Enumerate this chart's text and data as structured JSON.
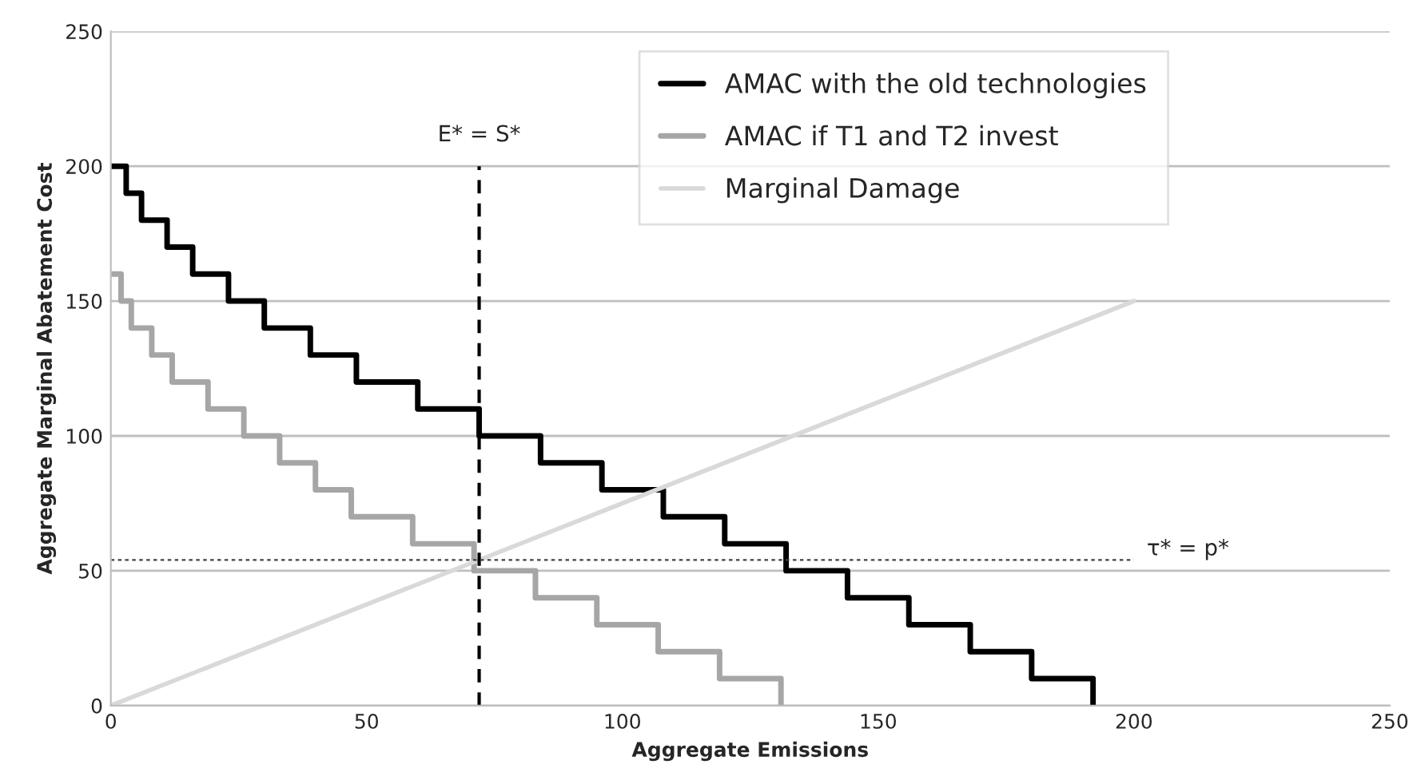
{
  "chart_data": {
    "type": "step",
    "xlabel": "Aggregate Emissions",
    "ylabel": "Aggregate Marginal Abatement Cost",
    "xlim": [
      0,
      250
    ],
    "ylim": [
      0,
      250
    ],
    "xticks": [
      0,
      50,
      100,
      150,
      200,
      250
    ],
    "yticks": [
      0,
      50,
      100,
      150,
      200,
      250
    ],
    "grid": "y",
    "legend": "top",
    "series": [
      {
        "name": "AMAC with the old technologies",
        "color": "#000000",
        "x": [
          0,
          3,
          6,
          11,
          16,
          23,
          30,
          39,
          48,
          60,
          72,
          84,
          96,
          108,
          120,
          132,
          144,
          156,
          168,
          180,
          192
        ],
        "values": [
          200,
          190,
          180,
          170,
          160,
          150,
          140,
          130,
          120,
          110,
          100,
          90,
          80,
          70,
          60,
          50,
          40,
          30,
          20,
          10,
          0
        ]
      },
      {
        "name": "AMAC if T1 and T2 invest",
        "color": "#a6a6a6",
        "x": [
          0,
          2,
          4,
          8,
          12,
          19,
          26,
          33,
          40,
          47,
          59,
          71,
          83,
          95,
          107,
          119,
          131
        ],
        "values": [
          160,
          150,
          140,
          130,
          120,
          110,
          100,
          90,
          80,
          70,
          60,
          50,
          40,
          30,
          20,
          10,
          0
        ]
      },
      {
        "name": "Marginal Damage",
        "type": "line",
        "color": "#d9d9d9",
        "x": [
          0,
          200
        ],
        "values": [
          0,
          150
        ]
      }
    ],
    "ref_lines": [
      {
        "axis": "x",
        "value": 72,
        "label": "E* = S*",
        "color": "#000000",
        "line_style": "dashed"
      },
      {
        "axis": "y",
        "value": 54,
        "label": "τ* = p*",
        "color": "#404040",
        "line_style": "dotted"
      }
    ]
  }
}
